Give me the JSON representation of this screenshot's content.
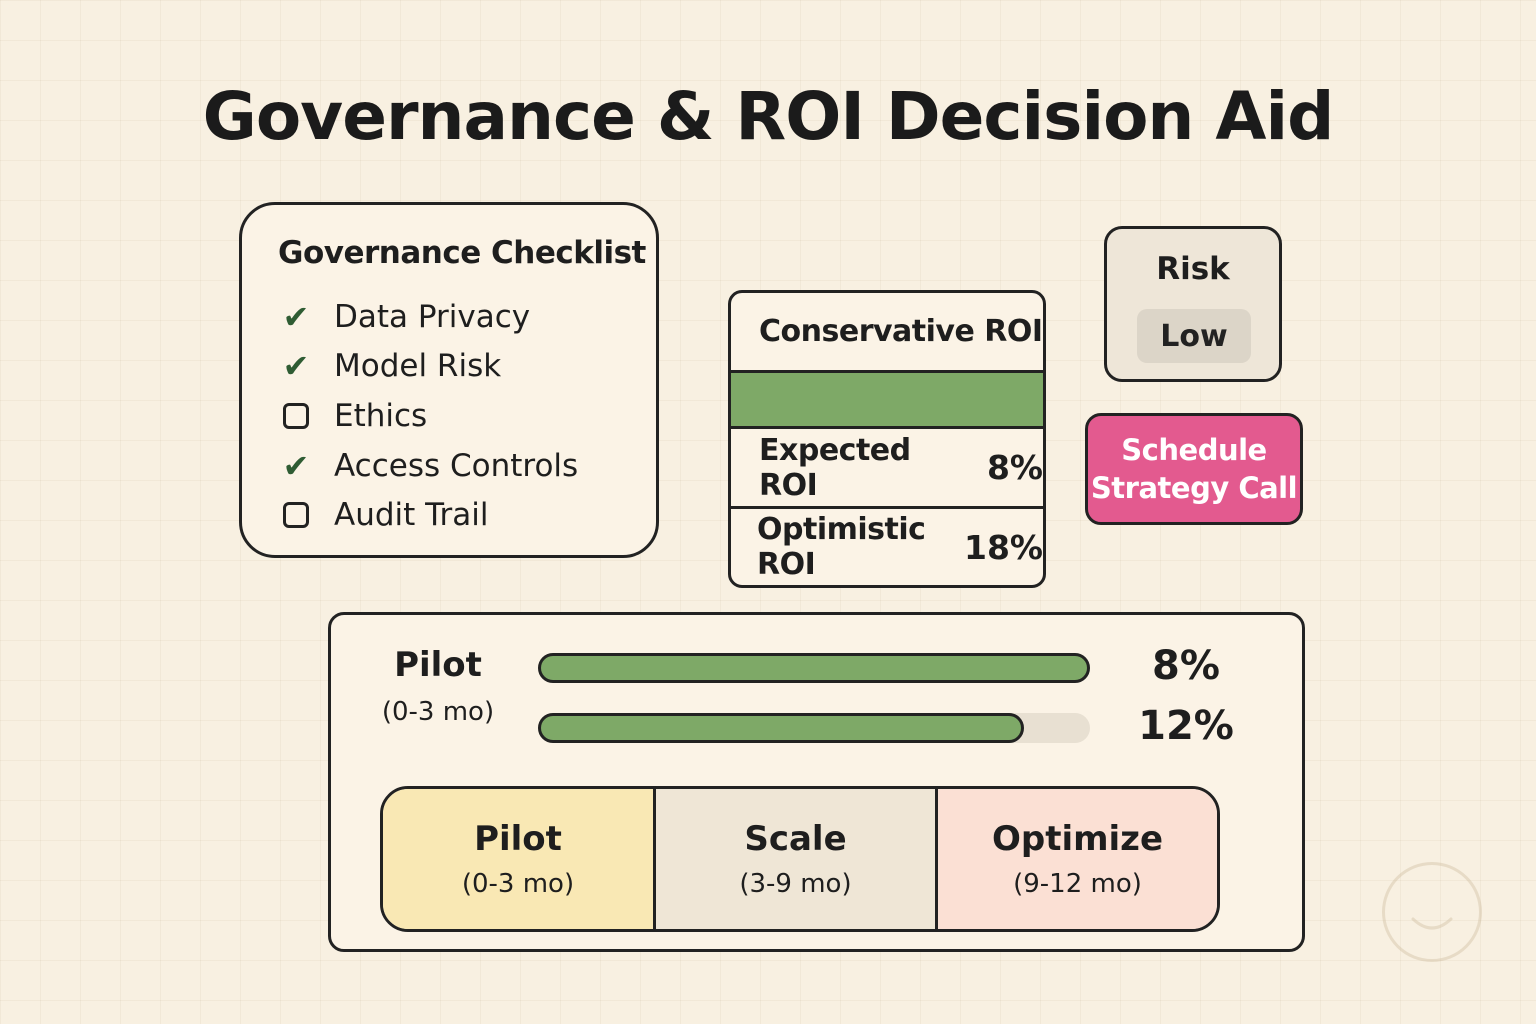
{
  "title": "Governance & ROI Decision Aid",
  "checklist": {
    "title": "Governance Checklist",
    "items": [
      {
        "label": "Data Privacy",
        "checked": true
      },
      {
        "label": "Model Risk",
        "checked": true
      },
      {
        "label": "Ethics",
        "checked": false
      },
      {
        "label": "Access Controls",
        "checked": true
      },
      {
        "label": "Audit Trail",
        "checked": false
      }
    ]
  },
  "roi": {
    "conservative_label": "Conservative ROI",
    "expected_label": "Expected ROI",
    "expected_value": "8%",
    "optimistic_label": "Optimistic ROI",
    "optimistic_value": "18%",
    "bar_color": "#7ea967"
  },
  "risk": {
    "label": "Risk",
    "value": "Low"
  },
  "schedule_button": {
    "line1": "Schedule",
    "line2": "Strategy Call",
    "color": "#e35a8f"
  },
  "timeline": {
    "current_phase": "Pilot",
    "current_duration": "(0-3 mo)",
    "bars": [
      {
        "label": "8%",
        "fill": 1.0
      },
      {
        "label": "12%",
        "fill": 0.88
      }
    ],
    "phases": [
      {
        "name": "Pilot",
        "duration": "(0-3 mo)",
        "color": "#f9e8b4"
      },
      {
        "name": "Scale",
        "duration": "(3-9 mo)",
        "color": "#efe6d6"
      },
      {
        "name": "Optimize",
        "duration": "(9-12 mo)",
        "color": "#fbe0d4"
      }
    ]
  },
  "icons": {
    "checked": "check-icon",
    "unchecked": "empty-checkbox-icon",
    "watermark": "smiley-icon"
  }
}
